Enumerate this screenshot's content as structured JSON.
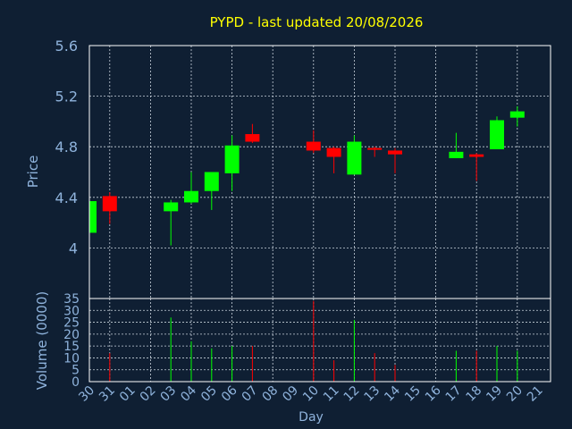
{
  "chart_data": {
    "type": "candlestick",
    "title": "PYPD - last updated 20/08/2026",
    "xlabel": "Day",
    "ylabel_price": "Price",
    "ylabel_volume": "Volume (0000)",
    "categories": [
      "30",
      "31",
      "01",
      "02",
      "03",
      "04",
      "05",
      "06",
      "07",
      "08",
      "09",
      "10",
      "11",
      "12",
      "13",
      "14",
      "15",
      "16",
      "17",
      "18",
      "19",
      "20",
      "21"
    ],
    "price_ylim": [
      3.6,
      5.6
    ],
    "price_yticks": [
      4,
      4.4,
      4.8,
      5.2,
      5.6
    ],
    "price_ytick_labels": [
      "4",
      "4.4",
      "4.8",
      "5.2",
      "5.6"
    ],
    "volume_ylim": [
      0,
      35
    ],
    "volume_yticks": [
      0,
      5,
      10,
      15,
      20,
      25,
      30,
      35
    ],
    "volume_ytick_labels": [
      "0",
      "5",
      "10",
      "15",
      "20",
      "25",
      "30",
      "35"
    ],
    "grid": true,
    "up_color": "#00ff00",
    "down_color": "#ff0000",
    "candles": [
      {
        "x": 0,
        "open": 4.12,
        "high": 4.38,
        "low": 4.12,
        "close": 4.37
      },
      {
        "x": 1,
        "open": 4.41,
        "high": 4.44,
        "low": 4.19,
        "close": 4.29
      },
      {
        "x": 4,
        "open": 4.29,
        "high": 4.38,
        "low": 4.02,
        "close": 4.36
      },
      {
        "x": 5,
        "open": 4.36,
        "high": 4.6,
        "low": 4.35,
        "close": 4.45
      },
      {
        "x": 6,
        "open": 4.45,
        "high": 4.6,
        "low": 4.3,
        "close": 4.6
      },
      {
        "x": 7,
        "open": 4.59,
        "high": 4.89,
        "low": 4.45,
        "close": 4.81
      },
      {
        "x": 8,
        "open": 4.9,
        "high": 4.98,
        "low": 4.83,
        "close": 4.84
      },
      {
        "x": 11,
        "open": 4.84,
        "high": 4.93,
        "low": 4.75,
        "close": 4.77
      },
      {
        "x": 12,
        "open": 4.79,
        "high": 4.8,
        "low": 4.59,
        "close": 4.72
      },
      {
        "x": 13,
        "open": 4.58,
        "high": 4.89,
        "low": 4.58,
        "close": 4.84
      },
      {
        "x": 14,
        "open": 4.79,
        "high": 4.8,
        "low": 4.72,
        "close": 4.78
      },
      {
        "x": 15,
        "open": 4.77,
        "high": 4.79,
        "low": 4.59,
        "close": 4.74
      },
      {
        "x": 18,
        "open": 4.71,
        "high": 4.91,
        "low": 4.71,
        "close": 4.76
      },
      {
        "x": 19,
        "open": 4.74,
        "high": 4.75,
        "low": 4.53,
        "close": 4.72
      },
      {
        "x": 20,
        "open": 4.78,
        "high": 5.04,
        "low": 4.78,
        "close": 5.01
      },
      {
        "x": 21,
        "open": 5.03,
        "high": 5.12,
        "low": 4.96,
        "close": 5.08
      }
    ],
    "volume": [
      {
        "x": 0,
        "value": 2,
        "dir": "up"
      },
      {
        "x": 1,
        "value": 12,
        "dir": "down"
      },
      {
        "x": 4,
        "value": 27,
        "dir": "up"
      },
      {
        "x": 5,
        "value": 17,
        "dir": "up"
      },
      {
        "x": 6,
        "value": 14,
        "dir": "up"
      },
      {
        "x": 7,
        "value": 15,
        "dir": "up"
      },
      {
        "x": 8,
        "value": 15,
        "dir": "down"
      },
      {
        "x": 11,
        "value": 34,
        "dir": "down"
      },
      {
        "x": 12,
        "value": 9,
        "dir": "down"
      },
      {
        "x": 13,
        "value": 26,
        "dir": "up"
      },
      {
        "x": 14,
        "value": 12,
        "dir": "down"
      },
      {
        "x": 15,
        "value": 7,
        "dir": "down"
      },
      {
        "x": 18,
        "value": 13,
        "dir": "up"
      },
      {
        "x": 19,
        "value": 13,
        "dir": "down"
      },
      {
        "x": 20,
        "value": 15,
        "dir": "up"
      },
      {
        "x": 21,
        "value": 13,
        "dir": "up"
      }
    ]
  }
}
